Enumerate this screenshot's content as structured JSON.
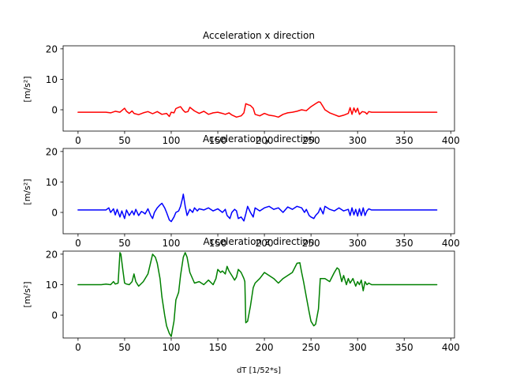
{
  "chart_data": [
    {
      "type": "line",
      "title": "Acceleration x direction",
      "ylabel": "[m/s²]",
      "xlabel": "",
      "xlim": [
        -16,
        404
      ],
      "ylim": [
        -7,
        21
      ],
      "xticks": [
        0,
        50,
        100,
        150,
        200,
        250,
        300,
        350,
        400
      ],
      "yticks": [
        0,
        10,
        20
      ],
      "grid": false,
      "series": [
        {
          "color": "#ff0000",
          "x": [
            0,
            30,
            35,
            40,
            45,
            50,
            52,
            55,
            58,
            60,
            65,
            70,
            75,
            80,
            85,
            90,
            95,
            98,
            100,
            103,
            105,
            108,
            110,
            113,
            115,
            118,
            120,
            125,
            130,
            135,
            140,
            145,
            150,
            155,
            158,
            162,
            165,
            170,
            175,
            178,
            180,
            183,
            185,
            188,
            190,
            195,
            200,
            205,
            210,
            215,
            220,
            225,
            230,
            235,
            240,
            245,
            250,
            255,
            258,
            260,
            263,
            265,
            270,
            275,
            280,
            285,
            290,
            292,
            294,
            296,
            298,
            300,
            302,
            305,
            308,
            310,
            312,
            315,
            385
          ],
          "y": [
            -0.8,
            -0.8,
            -1.0,
            -0.5,
            -0.8,
            0.5,
            -0.5,
            -1.2,
            -0.4,
            -1.2,
            -1.6,
            -1.0,
            -0.6,
            -1.3,
            -0.6,
            -1.5,
            -1.2,
            -2.2,
            -0.8,
            -1.0,
            0.4,
            0.8,
            1.0,
            -0.2,
            -0.8,
            -0.6,
            0.8,
            -0.4,
            -1.2,
            -0.5,
            -1.5,
            -1.0,
            -0.8,
            -1.2,
            -1.5,
            -1.0,
            -1.7,
            -2.4,
            -2.0,
            -1.0,
            2.0,
            1.6,
            1.4,
            0.5,
            -1.5,
            -2.0,
            -1.2,
            -1.8,
            -2.0,
            -2.4,
            -1.5,
            -1.0,
            -0.8,
            -0.5,
            0.0,
            -0.3,
            1.0,
            2.0,
            2.6,
            2.5,
            1.0,
            0.0,
            -1.0,
            -1.6,
            -2.2,
            -1.8,
            -1.2,
            0.7,
            -1.5,
            0.6,
            -0.8,
            0.5,
            -1.5,
            -0.6,
            -0.8,
            -1.4,
            -0.6,
            -0.8,
            -0.8
          ]
        }
      ]
    },
    {
      "type": "line",
      "title": "Acceleration y direction",
      "ylabel": "[m/s²]",
      "xlabel": "",
      "xlim": [
        -16,
        404
      ],
      "ylim": [
        -7,
        21
      ],
      "xticks": [
        0,
        50,
        100,
        150,
        200,
        250,
        300,
        350,
        400
      ],
      "yticks": [
        0,
        10,
        20
      ],
      "grid": false,
      "series": [
        {
          "color": "#0000ff",
          "x": [
            0,
            30,
            33,
            35,
            38,
            40,
            42,
            45,
            47,
            50,
            52,
            55,
            58,
            60,
            62,
            65,
            68,
            70,
            72,
            75,
            78,
            80,
            82,
            85,
            88,
            90,
            93,
            95,
            98,
            100,
            103,
            105,
            108,
            110,
            112,
            113,
            115,
            117,
            120,
            123,
            125,
            128,
            130,
            135,
            140,
            145,
            150,
            155,
            158,
            160,
            163,
            165,
            168,
            170,
            172,
            175,
            178,
            180,
            182,
            185,
            188,
            190,
            195,
            200,
            205,
            210,
            215,
            220,
            225,
            230,
            235,
            240,
            243,
            245,
            248,
            250,
            253,
            255,
            258,
            260,
            263,
            265,
            270,
            275,
            280,
            285,
            290,
            292,
            294,
            296,
            298,
            300,
            302,
            304,
            306,
            308,
            310,
            312,
            315,
            385
          ],
          "y": [
            0.8,
            0.8,
            1.5,
            0.0,
            1.2,
            -0.8,
            1.0,
            -1.5,
            0.5,
            -2.0,
            0.8,
            -1.0,
            0.5,
            -0.8,
            1.0,
            -1.0,
            0.3,
            0.0,
            -0.5,
            1.2,
            -1.0,
            -2.0,
            0.0,
            1.5,
            2.5,
            3.0,
            1.5,
            0.0,
            -2.5,
            -3.0,
            -1.5,
            0.0,
            0.5,
            2.0,
            4.5,
            6.0,
            2.0,
            -1.0,
            1.0,
            0.0,
            1.5,
            0.5,
            1.2,
            0.8,
            1.5,
            0.5,
            1.2,
            0.0,
            1.0,
            -1.0,
            -2.0,
            0.0,
            1.0,
            0.5,
            -2.0,
            -1.5,
            -2.8,
            -0.5,
            2.0,
            0.0,
            -1.5,
            1.5,
            0.5,
            1.5,
            2.0,
            1.0,
            1.5,
            0.0,
            1.8,
            1.0,
            2.0,
            1.5,
            0.0,
            1.0,
            -1.0,
            -1.5,
            -2.0,
            -1.0,
            0.0,
            1.5,
            -0.5,
            2.0,
            1.0,
            0.5,
            1.5,
            0.5,
            1.0,
            -1.0,
            1.5,
            -0.8,
            1.0,
            -1.2,
            1.2,
            -1.0,
            1.5,
            -1.0,
            0.5,
            1.2,
            0.8,
            0.8
          ]
        }
      ]
    },
    {
      "type": "line",
      "title": "Acceleration z direction",
      "ylabel": "[m/s²]",
      "xlabel": "dT [1/52*s]",
      "xlim": [
        -16,
        404
      ],
      "ylim": [
        -7.5,
        21
      ],
      "xticks": [
        0,
        50,
        100,
        150,
        200,
        250,
        300,
        350,
        400
      ],
      "yticks": [
        0,
        10,
        20
      ],
      "grid": false,
      "series": [
        {
          "color": "#008000",
          "x": [
            0,
            25,
            30,
            35,
            38,
            40,
            43,
            45,
            46,
            48,
            50,
            52,
            55,
            58,
            60,
            62,
            65,
            70,
            75,
            80,
            83,
            85,
            88,
            90,
            93,
            95,
            98,
            100,
            103,
            105,
            108,
            110,
            113,
            115,
            117,
            120,
            125,
            130,
            135,
            140,
            145,
            148,
            150,
            153,
            155,
            158,
            160,
            162,
            165,
            168,
            170,
            172,
            175,
            178,
            179,
            180,
            182,
            185,
            188,
            190,
            195,
            200,
            205,
            210,
            215,
            220,
            225,
            230,
            235,
            238,
            240,
            242,
            245,
            248,
            250,
            253,
            255,
            258,
            260,
            265,
            270,
            275,
            278,
            280,
            283,
            285,
            288,
            290,
            292,
            295,
            298,
            300,
            302,
            304,
            306,
            308,
            310,
            312,
            315,
            385
          ],
          "y": [
            10.0,
            10.0,
            10.2,
            10.0,
            11.0,
            10.2,
            10.5,
            20.5,
            20.0,
            15.0,
            10.5,
            10.2,
            10.0,
            11.0,
            13.5,
            11.0,
            9.5,
            11.0,
            13.5,
            20.0,
            19.0,
            17.0,
            12.0,
            6.0,
            0.0,
            -3.5,
            -6.0,
            -7.0,
            -2.0,
            5.0,
            7.5,
            13.0,
            19.0,
            20.5,
            19.0,
            14.0,
            10.5,
            11.0,
            10.0,
            11.5,
            10.0,
            12.0,
            15.0,
            14.0,
            14.5,
            13.5,
            16.0,
            14.5,
            13.0,
            11.5,
            12.5,
            15.0,
            14.0,
            12.0,
            11.0,
            -2.5,
            -2.0,
            3.0,
            9.0,
            10.5,
            12.0,
            14.0,
            13.0,
            12.0,
            10.5,
            12.0,
            13.0,
            14.0,
            17.0,
            17.2,
            14.0,
            11.0,
            6.0,
            1.0,
            -2.0,
            -3.5,
            -3.0,
            2.0,
            12.0,
            12.0,
            11.0,
            14.0,
            15.5,
            15.0,
            11.0,
            13.0,
            10.0,
            12.0,
            10.5,
            12.0,
            9.5,
            11.0,
            10.0,
            11.5,
            8.0,
            11.0,
            10.0,
            10.5,
            10.0,
            10.0
          ]
        }
      ]
    }
  ]
}
